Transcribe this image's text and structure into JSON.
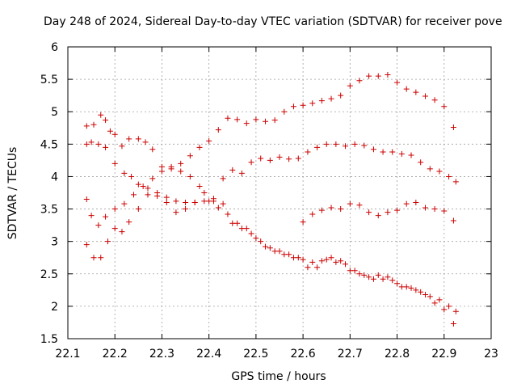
{
  "chart_data": {
    "type": "scatter",
    "title": "Day 248 of 2024, Sidereal Day-to-day VTEC variation (SDTVAR) for receiver pove",
    "xlabel": "GPS time / hours",
    "ylabel": "SDTVAR / TECUs",
    "xlim": [
      22.1,
      23.0
    ],
    "ylim": [
      1.5,
      6.0
    ],
    "xticks": [
      "22.1",
      "22.2",
      "22.3",
      "22.4",
      "22.5",
      "22.6",
      "22.7",
      "22.8",
      "22.9",
      "23"
    ],
    "yticks": [
      "1.5",
      "2",
      "2.5",
      "3",
      "3.5",
      "4",
      "4.5",
      "5",
      "5.5",
      "6"
    ],
    "grid": true,
    "marker": "+",
    "color": "#cc0000",
    "series": [
      {
        "name": "series-1",
        "x": [
          22.14,
          22.155,
          22.17,
          22.18,
          22.19,
          22.2,
          22.215,
          22.23,
          22.25,
          22.265,
          22.28,
          22.3,
          22.32,
          22.34,
          22.36,
          22.38,
          22.4,
          22.42,
          22.44,
          22.46,
          22.48,
          22.5,
          22.52,
          22.54,
          22.56,
          22.58,
          22.6,
          22.62,
          22.64,
          22.66,
          22.68,
          22.7,
          22.72,
          22.74,
          22.76,
          22.78,
          22.8,
          22.82,
          22.84,
          22.86,
          22.88,
          22.9,
          22.92
        ],
        "y": [
          4.78,
          4.8,
          4.95,
          4.87,
          4.7,
          4.65,
          4.47,
          4.58,
          4.58,
          4.53,
          4.42,
          4.15,
          4.12,
          4.2,
          4.32,
          4.45,
          4.55,
          4.72,
          4.9,
          4.88,
          4.82,
          4.88,
          4.85,
          4.87,
          5.0,
          5.08,
          5.1,
          5.13,
          5.17,
          5.2,
          5.25,
          5.4,
          5.48,
          5.55,
          5.55,
          5.57,
          5.45,
          5.35,
          5.3,
          5.24,
          5.18,
          5.08,
          4.76
        ]
      },
      {
        "name": "series-2",
        "x": [
          22.14,
          22.15,
          22.165,
          22.18,
          22.2,
          22.22,
          22.235,
          22.25,
          22.27,
          22.29,
          22.31,
          22.33,
          22.35,
          22.37,
          22.39,
          22.41,
          22.43,
          22.45,
          22.47,
          22.49,
          22.51,
          22.53,
          22.55,
          22.57,
          22.59,
          22.61,
          22.63,
          22.65,
          22.67,
          22.69,
          22.71,
          22.73,
          22.75,
          22.77,
          22.79,
          22.81,
          22.83,
          22.85,
          22.87,
          22.89,
          22.91,
          22.925
        ],
        "y": [
          4.5,
          4.53,
          4.5,
          4.45,
          4.2,
          4.05,
          4.0,
          3.88,
          3.82,
          3.75,
          3.68,
          3.62,
          3.6,
          3.6,
          3.62,
          3.66,
          3.97,
          4.1,
          4.05,
          4.22,
          4.28,
          4.25,
          4.3,
          4.27,
          4.28,
          4.38,
          4.45,
          4.5,
          4.5,
          4.47,
          4.5,
          4.48,
          4.42,
          4.38,
          4.38,
          4.35,
          4.33,
          4.22,
          4.12,
          4.08,
          4.0,
          3.92
        ]
      },
      {
        "name": "series-3",
        "x": [
          22.14,
          22.155,
          22.17,
          22.185,
          22.2,
          22.215,
          22.23,
          22.25,
          22.27,
          22.29,
          22.31,
          22.33,
          22.35,
          22.37,
          22.39,
          22.41,
          22.43,
          22.45,
          22.47,
          22.49,
          22.51,
          22.53,
          22.55,
          22.57,
          22.59,
          22.61,
          22.63,
          22.65,
          22.67,
          22.69,
          22.71,
          22.73,
          22.75,
          22.77,
          22.79,
          22.81,
          22.83,
          22.85,
          22.87,
          22.89,
          22.91,
          22.925
        ],
        "y": [
          2.95,
          2.75,
          2.75,
          3.0,
          3.2,
          3.15,
          3.3,
          3.5,
          3.72,
          3.7,
          3.6,
          3.45,
          3.5,
          3.6,
          3.75,
          3.62,
          3.58,
          3.28,
          3.2,
          3.12,
          3.0,
          2.9,
          2.85,
          2.8,
          2.75,
          2.6,
          2.6,
          2.72,
          2.68,
          2.65,
          2.55,
          2.48,
          2.42,
          2.42,
          2.4,
          2.3,
          2.28,
          2.22,
          2.15,
          2.1,
          2.0,
          1.92
        ]
      },
      {
        "name": "series-4",
        "x": [
          22.14,
          22.15,
          22.165,
          22.18,
          22.2,
          22.22,
          22.24,
          22.26,
          22.28,
          22.3,
          22.32,
          22.34,
          22.36,
          22.38,
          22.4,
          22.42,
          22.44,
          22.46,
          22.48,
          22.5,
          22.52,
          22.54,
          22.56,
          22.58,
          22.6,
          22.62,
          22.64,
          22.66,
          22.68,
          22.7,
          22.72,
          22.74,
          22.76,
          22.78,
          22.8,
          22.82,
          22.84,
          22.86,
          22.88,
          22.9,
          22.92
        ],
        "y": [
          3.65,
          3.4,
          3.25,
          3.38,
          3.5,
          3.58,
          3.72,
          3.85,
          3.97,
          4.08,
          4.15,
          4.08,
          4.0,
          3.85,
          3.62,
          3.52,
          3.42,
          3.28,
          3.2,
          3.05,
          2.92,
          2.85,
          2.8,
          2.75,
          2.72,
          2.68,
          2.7,
          2.75,
          2.7,
          2.55,
          2.5,
          2.45,
          2.48,
          2.45,
          2.35,
          2.3,
          2.25,
          2.18,
          2.05,
          1.95,
          1.73
        ]
      },
      {
        "name": "series-5",
        "x": [
          22.6,
          22.62,
          22.64,
          22.66,
          22.68,
          22.7,
          22.72,
          22.74,
          22.76,
          22.78,
          22.8,
          22.82,
          22.84,
          22.86,
          22.88,
          22.9,
          22.92
        ],
        "y": [
          3.3,
          3.42,
          3.48,
          3.52,
          3.5,
          3.58,
          3.56,
          3.45,
          3.4,
          3.45,
          3.48,
          3.58,
          3.6,
          3.52,
          3.5,
          3.47,
          3.32
        ]
      }
    ]
  }
}
